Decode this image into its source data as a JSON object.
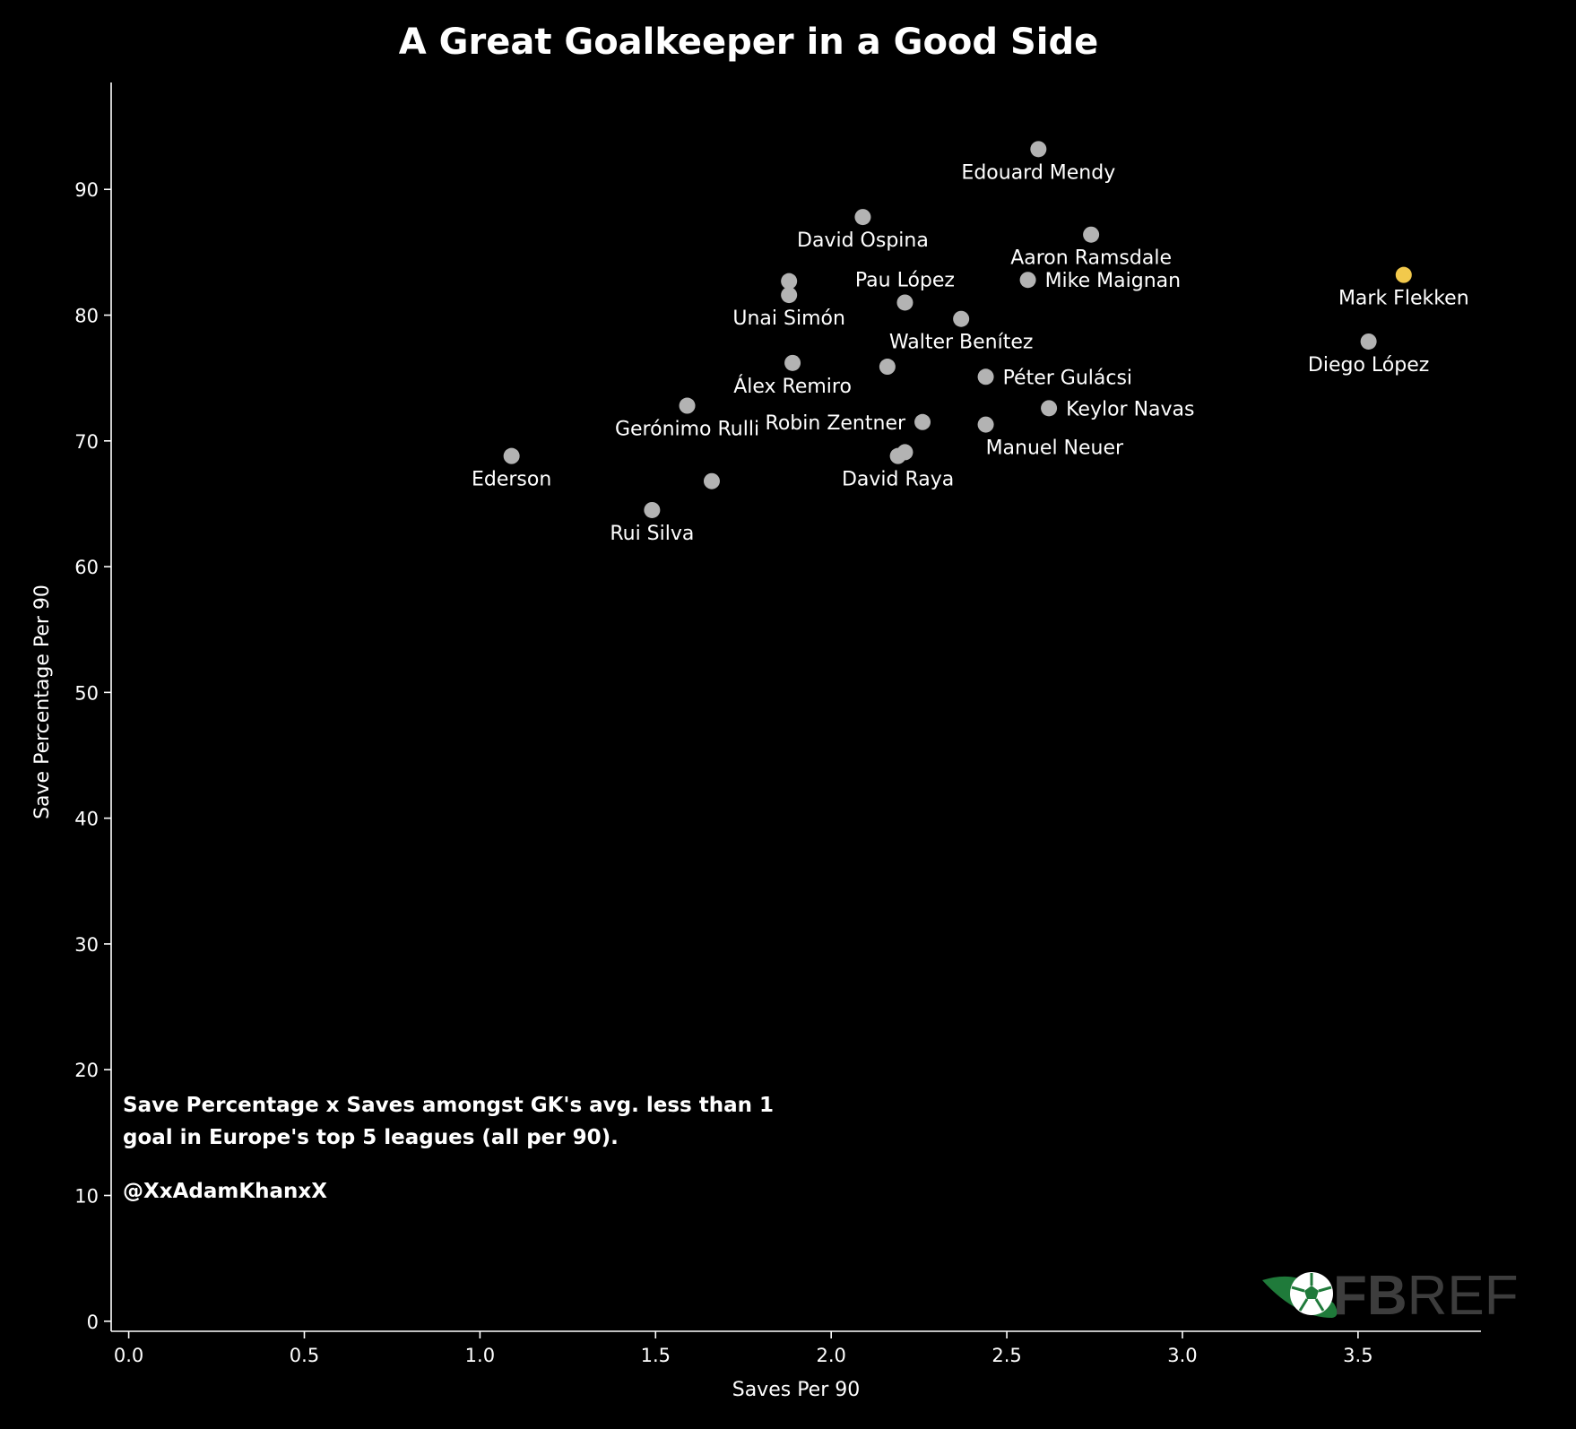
{
  "chart_data": {
    "type": "scatter",
    "title": "A Great Goalkeeper in a Good Side",
    "xlabel": "Saves Per 90",
    "ylabel": "Save Percentage Per 90",
    "xlim": [
      -0.05,
      3.85
    ],
    "ylim": [
      -0.8,
      98.5
    ],
    "xticks": [
      "0.0",
      "0.5",
      "1.0",
      "1.5",
      "2.0",
      "2.5",
      "3.0",
      "3.5"
    ],
    "yticks": [
      "0",
      "10",
      "20",
      "30",
      "40",
      "50",
      "60",
      "70",
      "80",
      "90"
    ],
    "grid": false,
    "colors": {
      "background": "#000000",
      "axes": "#ffffff",
      "point": "#b3b3b3",
      "highlight": "#f2c94c"
    },
    "points": [
      {
        "x": 2.59,
        "y": 93.2,
        "label": "Edouard Mendy",
        "label_pos": "below"
      },
      {
        "x": 2.09,
        "y": 87.8,
        "label": "David Ospina",
        "label_pos": "below"
      },
      {
        "x": 2.74,
        "y": 86.4,
        "label": "Aaron Ramsdale",
        "label_pos": "below"
      },
      {
        "x": 2.56,
        "y": 82.8,
        "label": "Mike Maignan",
        "label_pos": "right"
      },
      {
        "x": 2.21,
        "y": 81.0,
        "label": "Pau López",
        "label_pos": "above"
      },
      {
        "x": 1.88,
        "y": 82.7,
        "label": "",
        "label_pos": "none"
      },
      {
        "x": 1.88,
        "y": 81.6,
        "label": "Unai Simón",
        "label_pos": "below"
      },
      {
        "x": 2.37,
        "y": 79.7,
        "label": "Walter Benítez",
        "label_pos": "below"
      },
      {
        "x": 3.63,
        "y": 83.2,
        "label": "Mark Flekken",
        "label_pos": "below",
        "highlight": true
      },
      {
        "x": 3.53,
        "y": 77.9,
        "label": "Diego López",
        "label_pos": "below"
      },
      {
        "x": 1.89,
        "y": 76.2,
        "label": "Álex Remiro",
        "label_pos": "below"
      },
      {
        "x": 2.16,
        "y": 75.9,
        "label": "",
        "label_pos": "none"
      },
      {
        "x": 2.44,
        "y": 75.1,
        "label": "Péter Gulácsi",
        "label_pos": "right"
      },
      {
        "x": 2.62,
        "y": 72.6,
        "label": "Keylor Navas",
        "label_pos": "right"
      },
      {
        "x": 1.59,
        "y": 72.8,
        "label": "Gerónimo Rulli",
        "label_pos": "below"
      },
      {
        "x": 2.26,
        "y": 71.5,
        "label": "Robin Zentner",
        "label_pos": "left"
      },
      {
        "x": 2.44,
        "y": 71.3,
        "label": "Manuel Neuer",
        "label_pos": "below-right"
      },
      {
        "x": 2.21,
        "y": 69.1,
        "label": "",
        "label_pos": "none"
      },
      {
        "x": 2.19,
        "y": 68.8,
        "label": "David Raya",
        "label_pos": "below"
      },
      {
        "x": 1.09,
        "y": 68.8,
        "label": "Ederson",
        "label_pos": "below"
      },
      {
        "x": 1.66,
        "y": 66.8,
        "label": "",
        "label_pos": "none"
      },
      {
        "x": 1.49,
        "y": 64.5,
        "label": "Rui Silva",
        "label_pos": "below"
      }
    ],
    "annotation": {
      "lines": [
        "Save Percentage x Saves amongst GK's avg. less than 1",
        "goal in Europe's top 5 leagues (all per 90)."
      ],
      "credit": "@XxAdamKhanxX"
    }
  },
  "logo": {
    "text_bold": "FB",
    "text_light": "REF"
  }
}
